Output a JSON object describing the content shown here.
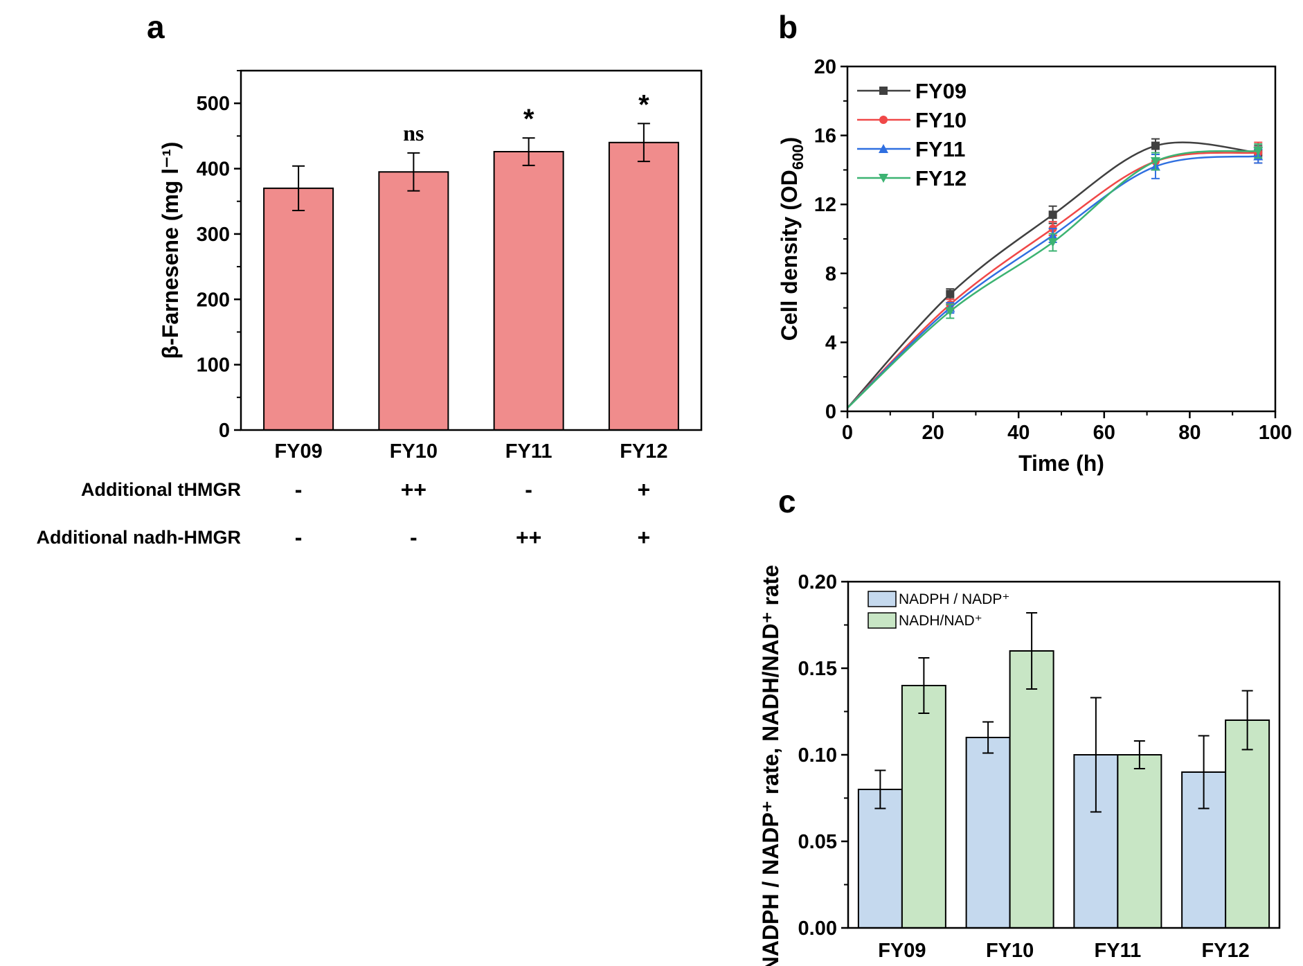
{
  "chart_data": [
    {
      "panel": "a",
      "type": "bar",
      "categories": [
        "FY09",
        "FY10",
        "FY11",
        "FY12"
      ],
      "values": [
        370,
        395,
        426,
        440
      ],
      "errors": [
        34,
        29,
        21,
        29
      ],
      "significance": [
        "",
        "ns",
        "*",
        "*"
      ],
      "ylabel": "β-Farnesene (mg l⁻¹)",
      "ylim": [
        0,
        550
      ],
      "yticks": [
        0,
        100,
        200,
        300,
        400,
        500
      ],
      "bar_color": "#f08c8c",
      "condition_rows": [
        {
          "label": "Additional tHMGR",
          "marks": [
            "-",
            "++",
            "-",
            "+"
          ]
        },
        {
          "label": "Additional nadh-HMGR",
          "marks": [
            "-",
            "-",
            "++",
            "+"
          ]
        }
      ]
    },
    {
      "panel": "b",
      "type": "line",
      "xlabel": "Time (h)",
      "ylabel": "Cell density (OD",
      "ylabel_sub": "600",
      "ylabel_end": ")",
      "xlim": [
        0,
        100
      ],
      "ylim": [
        0,
        20
      ],
      "xticks": [
        0,
        20,
        40,
        60,
        80,
        100
      ],
      "yticks": [
        0,
        4,
        8,
        12,
        16,
        20
      ],
      "x": [
        0,
        24,
        48,
        72,
        96
      ],
      "series": [
        {
          "name": "FY09",
          "color": "#404040",
          "marker": "square",
          "values": [
            0.2,
            6.8,
            11.4,
            15.4,
            15.0
          ],
          "errors": [
            0,
            0.3,
            0.5,
            0.4,
            0.4
          ]
        },
        {
          "name": "FY10",
          "color": "#f04848",
          "marker": "circle",
          "values": [
            0.2,
            6.2,
            10.6,
            14.5,
            15.0
          ],
          "errors": [
            0,
            0.3,
            0.4,
            0.5,
            0.6
          ]
        },
        {
          "name": "FY11",
          "color": "#2f6fe0",
          "marker": "triangle-up",
          "values": [
            0.2,
            6.0,
            10.2,
            14.2,
            14.8
          ],
          "errors": [
            0,
            0.3,
            0.4,
            0.7,
            0.4
          ]
        },
        {
          "name": "FY12",
          "color": "#3cb372",
          "marker": "triangle-down",
          "values": [
            0.2,
            5.8,
            9.8,
            14.5,
            15.1
          ],
          "errors": [
            0,
            0.4,
            0.5,
            0.5,
            0.4
          ]
        }
      ]
    },
    {
      "panel": "c",
      "type": "bar",
      "categories": [
        "FY09",
        "FY10",
        "FY11",
        "FY12"
      ],
      "ylabel": "NADPH / NADP⁺ rate, NADH/NAD⁺ rate",
      "ylim": [
        0,
        0.2
      ],
      "yticks": [
        "0.00",
        "0.05",
        "0.10",
        "0.15",
        "0.20"
      ],
      "series": [
        {
          "name": "NADPH / NADP⁺",
          "color": "#c5d9ee",
          "values": [
            0.08,
            0.11,
            0.1,
            0.09
          ],
          "errors": [
            0.011,
            0.009,
            0.033,
            0.021
          ]
        },
        {
          "name": "NADH/NAD⁺",
          "color": "#c8e6c5",
          "values": [
            0.14,
            0.16,
            0.1,
            0.12
          ],
          "errors": [
            0.016,
            0.022,
            0.008,
            0.017
          ]
        }
      ]
    }
  ]
}
